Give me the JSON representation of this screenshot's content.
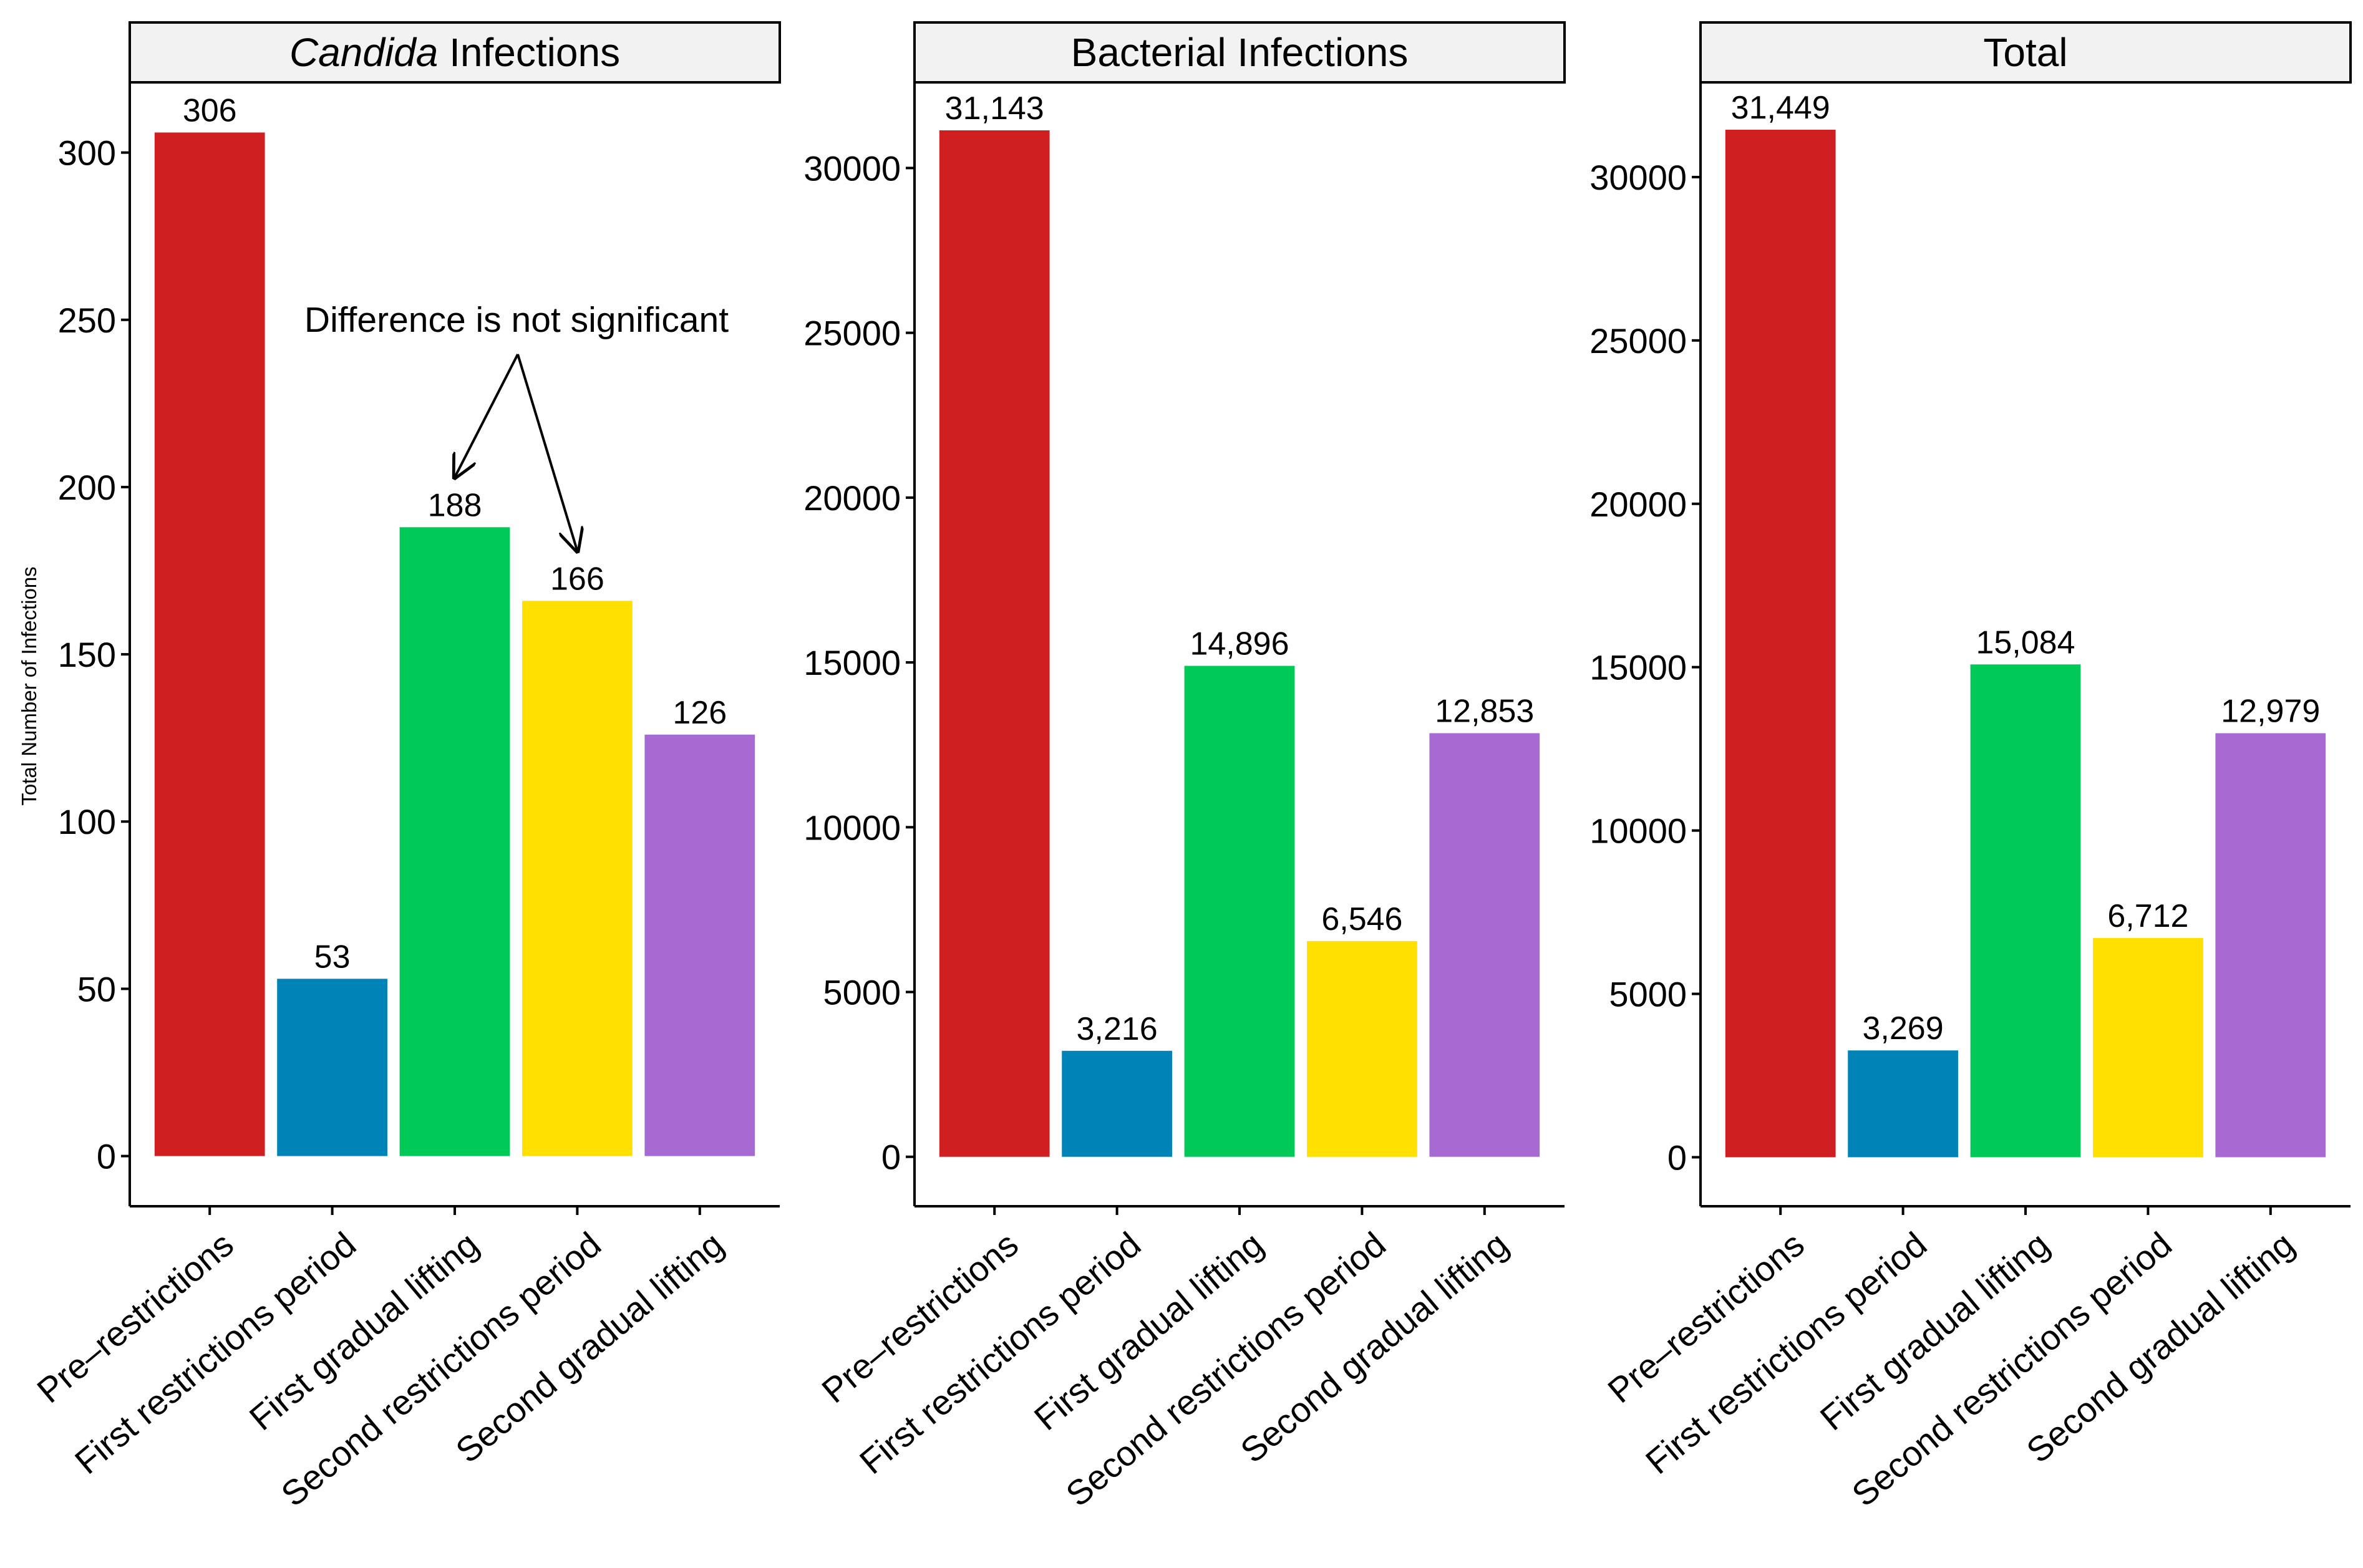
{
  "figure": {
    "ylabel": "Total Number of Infections",
    "annotation": "Difference is not significant"
  },
  "colors": {
    "pre_restrictions": "#d01f20",
    "first_restrictions": "#0084b8",
    "first_gradual": "#00c957",
    "second_restrictions": "#ffe000",
    "second_gradual": "#a66ad2",
    "strip_fill": "#f2f2f2"
  },
  "chart_data": [
    {
      "type": "bar",
      "title_italic": "Candida",
      "title": "Infections",
      "categories": [
        "Pre–restrictions",
        "First restrictions period",
        "First gradual lifting",
        "Second restrictions period",
        "Second gradual lifting"
      ],
      "values": [
        306,
        53,
        188,
        166,
        126
      ],
      "data_labels": [
        "306",
        "53",
        "188",
        "166",
        "126"
      ],
      "yticks": [
        0,
        50,
        100,
        150,
        200,
        250,
        300
      ],
      "ylim": [
        -15,
        321
      ]
    },
    {
      "type": "bar",
      "title_italic": "",
      "title": "Bacterial Infections",
      "categories": [
        "Pre–restrictions",
        "First restrictions period",
        "First gradual lifting",
        "Second restrictions period",
        "Second gradual lifting"
      ],
      "values": [
        31143,
        3216,
        14896,
        6546,
        12853
      ],
      "data_labels": [
        "31,143",
        "3,216",
        "14,896",
        "6,546",
        "12,853"
      ],
      "yticks": [
        0,
        5000,
        10000,
        15000,
        20000,
        25000,
        30000
      ],
      "ylim": [
        -1500,
        32600
      ]
    },
    {
      "type": "bar",
      "title_italic": "",
      "title": "Total",
      "categories": [
        "Pre–restrictions",
        "First restrictions period",
        "First gradual lifting",
        "Second restrictions period",
        "Second gradual lifting"
      ],
      "values": [
        31449,
        3269,
        15084,
        6712,
        12979
      ],
      "data_labels": [
        "31,449",
        "3,269",
        "15,084",
        "6,712",
        "12,979"
      ],
      "yticks": [
        0,
        5000,
        10000,
        15000,
        20000,
        25000,
        30000
      ],
      "ylim": [
        -1500,
        32900
      ]
    }
  ]
}
